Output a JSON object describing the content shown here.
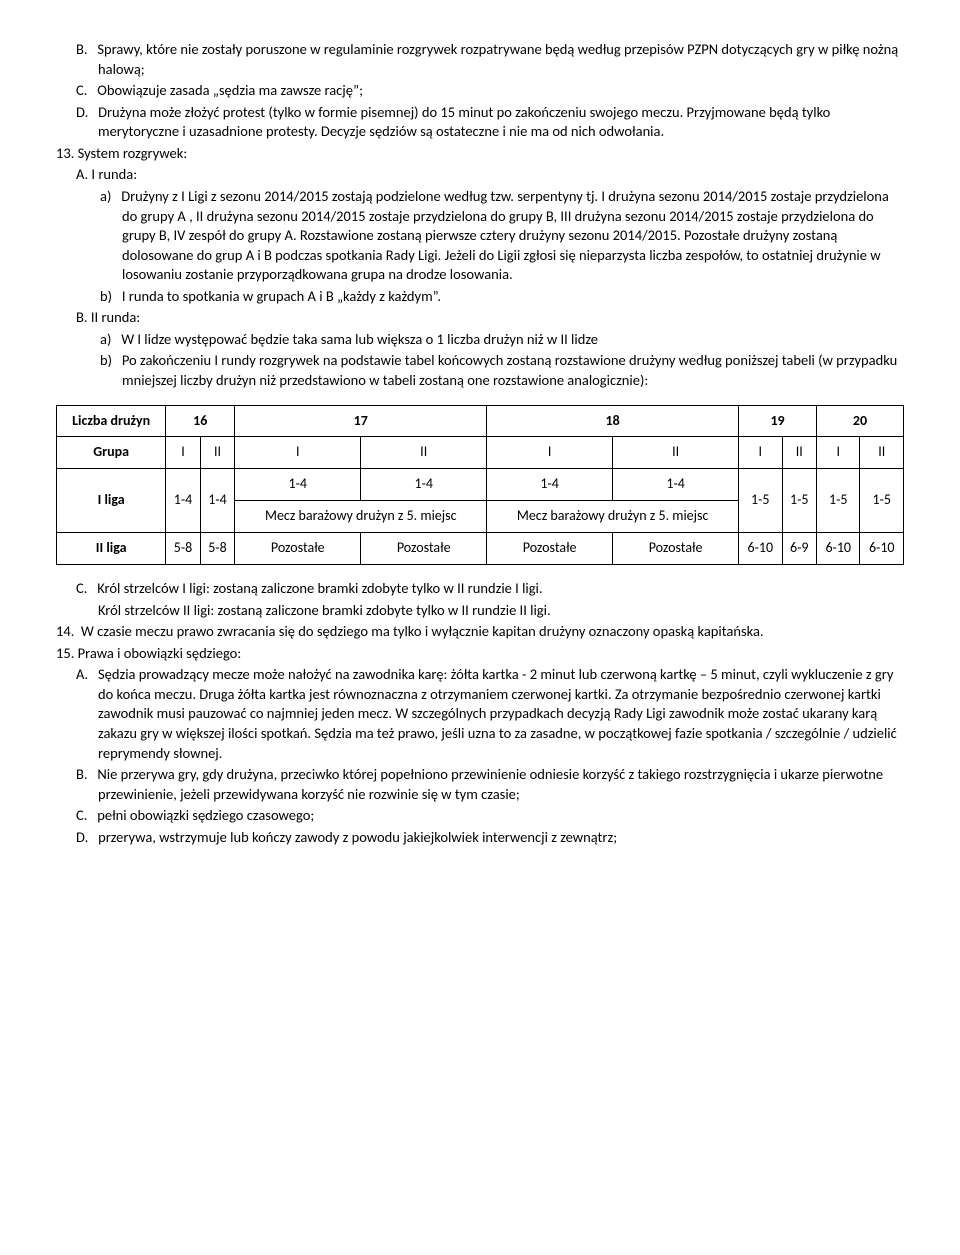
{
  "items": {
    "B_top": "Sprawy, które nie zostały poruszone w regulaminie rozgrywek rozpatrywane będą według przepisów PZPN dotyczących gry w piłkę nożną halową;",
    "C_top": "Obowiązuje zasada „sędzia ma zawsze rację”;",
    "D_top": "Drużyna może złożyć protest (tylko w formie pisemnej) do 15 minut po zakończeniu swojego meczu. Przyjmowane będą tylko merytoryczne i uzasadnione protesty. Decyzje sędziów są ostateczne i nie ma od nich odwołania.",
    "p13_label": "13.  System rozgrywek:",
    "p13_A": "A.    I runda:",
    "p13_A_a": "Drużyny z I Ligi z sezonu 2014/2015 zostają podzielone według tzw. serpentyny tj. I drużyna sezonu 2014/2015 zostaje przydzielona do grupy A , II drużyna sezonu 2014/2015 zostaje przydzielona do grupy B, III drużyna sezonu 2014/2015 zostaje przydzielona do grupy B, IV zespół do grupy A. Rozstawione zostaną pierwsze cztery drużyny sezonu 2014/2015. Pozostałe drużyny zostaną dolosowane do grup A i B podczas spotkania Rady Ligi. Jeżeli do Ligii zgłosi się nieparzysta liczba zespołów, to ostatniej drużynie w losowaniu zostanie przyporządkowana grupa na drodze losowania.",
    "p13_A_b": "I runda to spotkania w grupach A i B „każdy z każdym”.",
    "p13_B": "B.    II runda:",
    "p13_B_a": "W I lidze występować będzie taka sama lub większa o 1 liczba drużyn niż w II lidze",
    "p13_B_b": "Po zakończeniu I rundy rozgrywek na podstawie tabel końcowych zostaną rozstawione drużyny według poniższej tabeli (w przypadku mniejszej liczby drużyn niż przedstawiono w tabeli zostaną one rozstawione analogicznie):",
    "p13_C": "Król strzelców I ligi: zostaną zaliczone bramki zdobyte tylko w II rundzie I ligi.",
    "p13_C2": "Król strzelców II ligi: zostaną zaliczone bramki zdobyte tylko w II rundzie II ligi.",
    "p14": "W czasie meczu prawo zwracania się do sędziego ma tylko i wyłącznie kapitan drużyny oznaczony opaską kapitańska.",
    "p15_label": "15.  Prawa i obowiązki sędziego:",
    "p15_A": "Sędzia prowadzący mecze może nałożyć na zawodnika karę: żółta kartka - 2 minut lub czerwoną kartkę – 5 minut, czyli wykluczenie z gry do końca meczu. Druga żółta kartka jest równoznaczna z otrzymaniem czerwonej kartki. Za otrzymanie bezpośrednio czerwonej kartki zawodnik musi pauzować co najmniej jeden mecz. W szczególnych przypadkach decyzją Rady Ligi zawodnik może zostać ukarany karą zakazu gry w większej ilości spotkań. Sędzia ma też prawo, jeśli uzna to za zasadne, w początkowej fazie spotkania / szczególnie / udzielić reprymendy słownej.",
    "p15_B": "Nie przerywa gry, gdy drużyna, przeciwko której popełniono przewinienie odniesie korzyść z takiego rozstrzygnięcia i ukarze pierwotne przewinienie, jeżeli przewidywana korzyść nie rozwinie się w tym czasie;",
    "p15_C": "pełni obowiązki sędziego czasowego;",
    "p15_D": "przerywa, wstrzymuje lub kończy zawody z powodu jakiejkolwiek interwencji z zewnątrz;"
  },
  "table": {
    "header": {
      "c0": "Liczba drużyn",
      "c1": "16",
      "c2": "17",
      "c3": "18",
      "c4": "19",
      "c5": "20"
    },
    "grupa_row": {
      "label": "Grupa",
      "cells": [
        "I",
        "II",
        "I",
        "II",
        "I",
        "II",
        "I",
        "II",
        "I",
        "II"
      ]
    },
    "liga1": {
      "label": "I liga",
      "c16_I": "1-4",
      "c16_II": "1-4",
      "c17_top_I": "1-4",
      "c17_top_II": "1-4",
      "c17_bot": "Mecz barażowy drużyn z 5. miejsc",
      "c18_top_I": "1-4",
      "c18_top_II": "1-4",
      "c18_bot": "Mecz barażowy drużyn z 5. miejsc",
      "c19_I": "1-5",
      "c19_II": "1-5",
      "c20_I": "1-5",
      "c20_II": "1-5"
    },
    "liga2": {
      "label": "II liga",
      "cells": [
        "5-8",
        "5-8",
        "Pozostałe",
        "Pozostałe",
        "Pozostałe",
        "Pozostałe",
        "6-10",
        "6-9",
        "6-10",
        "6-10"
      ]
    }
  }
}
